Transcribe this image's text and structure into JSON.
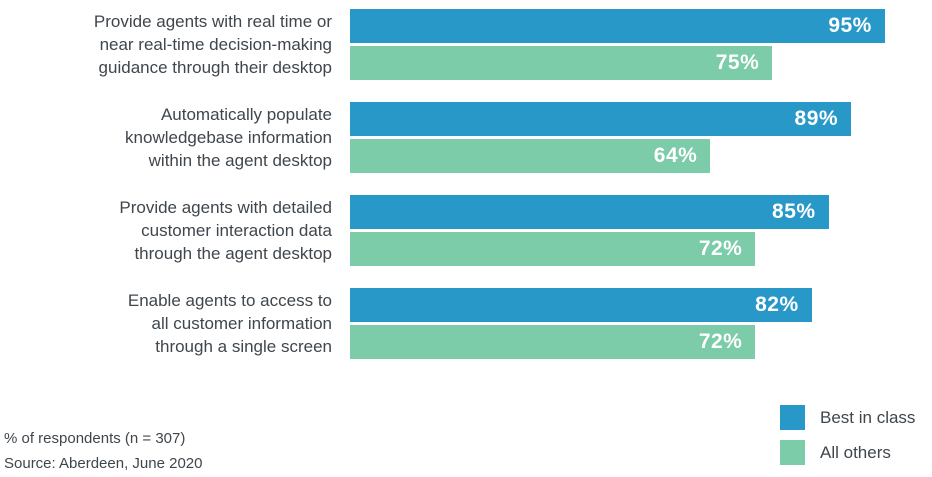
{
  "colors": {
    "best_in_class": "#2898C8",
    "all_others": "#7CCBA9",
    "label_text": "#3F464C",
    "value_text": "#FFFFFF"
  },
  "chart_data": {
    "type": "bar",
    "orientation": "horizontal",
    "unit": "%",
    "xlim": [
      0,
      100
    ],
    "grid": false,
    "legend_position": "bottom-right",
    "series_names": [
      "Best in class",
      "All others"
    ],
    "groups": [
      {
        "label_lines": [
          "Provide agents with real time or",
          "near real-time decision-making",
          "guidance through their desktop"
        ],
        "best_in_class": 95,
        "all_others": 75
      },
      {
        "label_lines": [
          "Automatically populate",
          "knowledgebase information",
          "within the agent desktop"
        ],
        "best_in_class": 89,
        "all_others": 64
      },
      {
        "label_lines": [
          "Provide agents with detailed",
          "customer interaction data",
          "through the agent desktop"
        ],
        "best_in_class": 85,
        "all_others": 72
      },
      {
        "label_lines": [
          "Enable agents to access to",
          "all customer information",
          "through a single screen"
        ],
        "best_in_class": 82,
        "all_others": 72
      }
    ]
  },
  "legend": {
    "items": [
      {
        "label": "Best in class",
        "color": "#2898C8"
      },
      {
        "label": "All others",
        "color": "#7CCBA9"
      }
    ]
  },
  "footer": {
    "note": "% of respondents (n = 307)",
    "source": "Source: Aberdeen, June 2020"
  }
}
